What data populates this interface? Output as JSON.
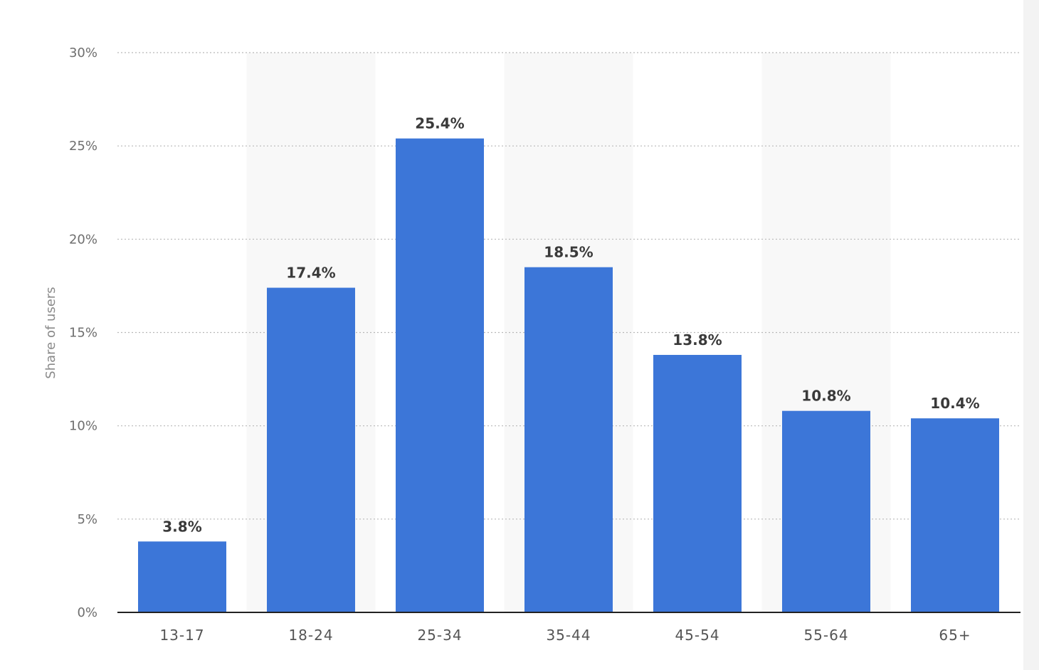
{
  "chart_data": {
    "type": "bar",
    "categories": [
      "13-17",
      "18-24",
      "25-34",
      "35-44",
      "45-54",
      "55-64",
      "65+"
    ],
    "values": [
      3.8,
      17.4,
      25.4,
      18.5,
      13.8,
      10.8,
      10.4
    ],
    "value_labels": [
      "3.8%",
      "17.4%",
      "25.4%",
      "18.5%",
      "13.8%",
      "10.8%",
      "10.4%"
    ],
    "ylabel": "Share of users",
    "xlabel": "",
    "ylim": [
      0,
      30
    ],
    "yticks": [
      0,
      5,
      10,
      15,
      20,
      25,
      30
    ],
    "ytick_labels": [
      "0%",
      "5%",
      "10%",
      "15%",
      "20%",
      "25%",
      "30%"
    ],
    "grid": true,
    "alternating_bands": true,
    "colors": {
      "bar": "#3c76d8",
      "band": "#f8f8f8"
    }
  }
}
